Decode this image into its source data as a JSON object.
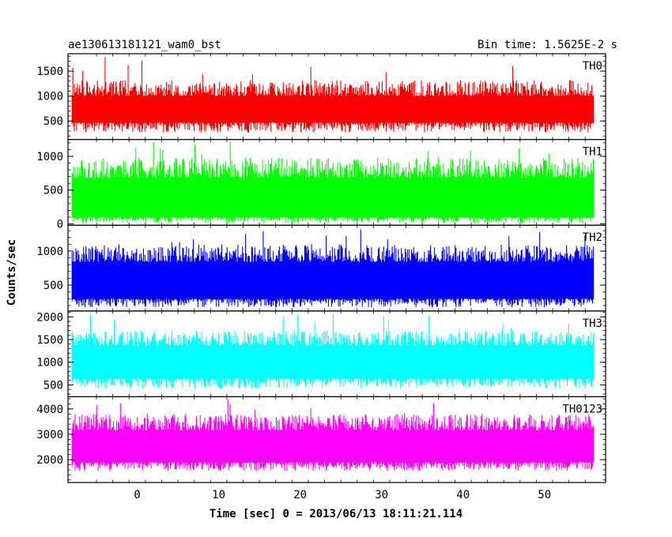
{
  "header": {
    "title": "ae130613181121_wam0_bst",
    "bin_time": "Bin time: 1.5625E-2 s"
  },
  "chart_data": {
    "type": "line",
    "xlabel": "Time [sec] 0 = 2013/06/13 18:11:21.114",
    "ylabel": "Counts/sec",
    "xlim": [
      -8.5,
      57.5
    ],
    "data_x_range": [
      -8.0,
      56.0
    ],
    "x_ticks_major": [
      0,
      10,
      20,
      30,
      40,
      50
    ],
    "x_tick_labels": [
      "0",
      "10",
      "20",
      "30",
      "40",
      "50"
    ],
    "panels": [
      {
        "name": "TH0",
        "color": "#ff0000",
        "ylim": [
          130,
          1850
        ],
        "y_ticks": [
          500,
          1000,
          1500
        ],
        "y_tick_labels": [
          "500",
          "1000",
          "1500"
        ],
        "baseline_low": 470,
        "baseline_high": 1000,
        "typical_min": 270,
        "typical_max": 1320,
        "peak_max": 1820
      },
      {
        "name": "TH1",
        "color": "#00ff00",
        "ylim": [
          -20,
          1250
        ],
        "y_ticks": [
          0,
          500,
          1000
        ],
        "y_tick_labels": [
          "0",
          "500",
          "1000"
        ],
        "baseline_low": 100,
        "baseline_high": 680,
        "typical_min": 10,
        "typical_max": 980,
        "peak_max": 1240
      },
      {
        "name": "TH2",
        "color": "#0000ff",
        "ylim": [
          120,
          1380
        ],
        "y_ticks": [
          500,
          1000
        ],
        "y_tick_labels": [
          "500",
          "1000"
        ],
        "baseline_low": 300,
        "baseline_high": 840,
        "typical_min": 170,
        "typical_max": 1100,
        "peak_max": 1370
      },
      {
        "name": "TH3",
        "color": "#00ffff",
        "ylim": [
          240,
          2130
        ],
        "y_ticks": [
          500,
          1000,
          1500,
          2000
        ],
        "y_tick_labels": [
          "500",
          "1000",
          "1500",
          "2000"
        ],
        "baseline_low": 650,
        "baseline_high": 1370,
        "typical_min": 420,
        "typical_max": 1700,
        "peak_max": 2100
      },
      {
        "name": "TH0123",
        "color": "#ff00ff",
        "ylim": [
          1100,
          4480
        ],
        "y_ticks": [
          2000,
          3000,
          4000
        ],
        "y_tick_labels": [
          "2000",
          "3000",
          "4000"
        ],
        "baseline_low": 1900,
        "baseline_high": 3150,
        "typical_min": 1550,
        "typical_max": 3800,
        "peak_max": 4400
      }
    ]
  }
}
